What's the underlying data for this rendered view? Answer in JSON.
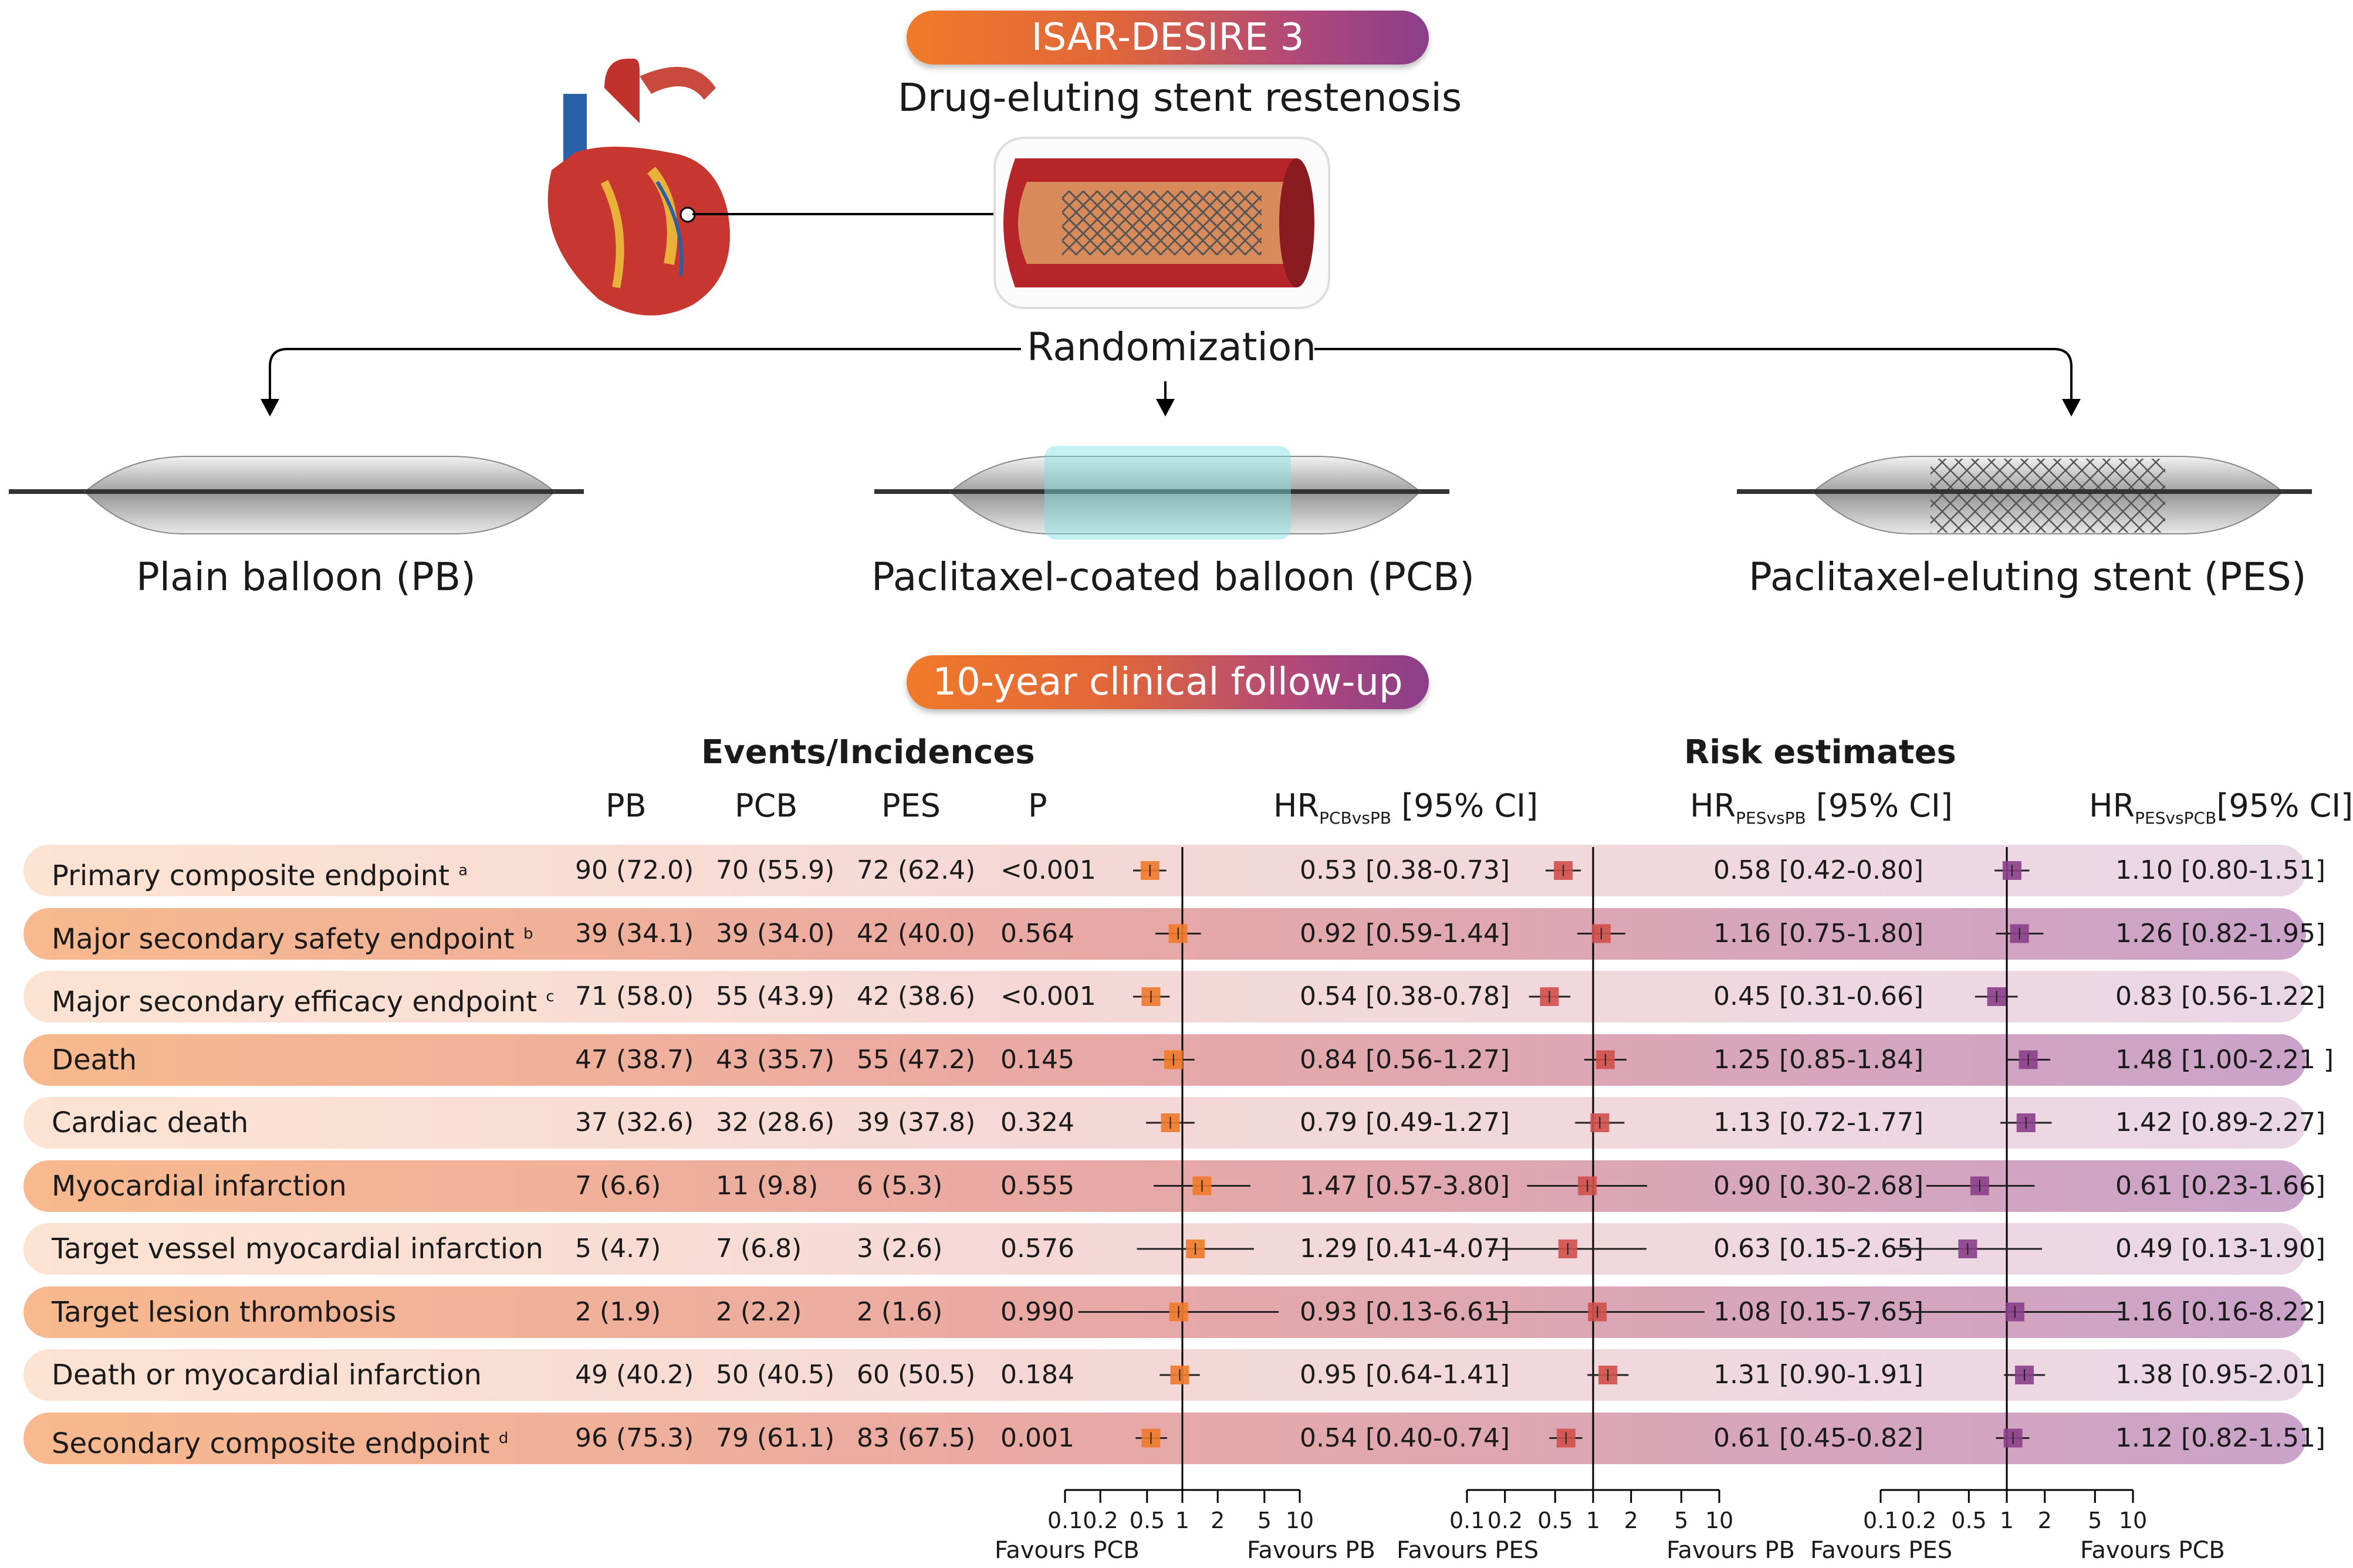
{
  "header": {
    "trial": "ISAR-DESIRE 3",
    "subtitle": "Drug-eluting stent restenosis",
    "randomization": "Randomization",
    "arms": [
      "Plain balloon (PB)",
      "Paclitaxel-coated balloon (PCB)",
      "Paclitaxel-eluting stent (PES)"
    ],
    "followup": "10-year clinical follow-up"
  },
  "table": {
    "events_header": "Events/Incidences",
    "risk_header": "Risk estimates",
    "col_pb": "PB",
    "col_pcb": "PCB",
    "col_pes": "PES",
    "col_p": "P",
    "hr1": {
      "main": "HR",
      "sub": "PCBvsPB",
      "ci": "[95% CI]"
    },
    "hr2": {
      "main": "HR",
      "sub": "PESvsPB",
      "ci": "[95% CI]"
    },
    "hr3": {
      "main": "HR",
      "sub": "PESvsPCB",
      "ci": "[95% CI]"
    },
    "axis_ticks": [
      "0.1",
      "0.2",
      "0.5",
      "1",
      "2",
      "5",
      "10"
    ],
    "favours": [
      [
        "Favours PCB",
        "Favours PB"
      ],
      [
        "Favours PES",
        "Favours PB"
      ],
      [
        "Favours PES",
        "Favours PCB"
      ]
    ]
  },
  "colors": {
    "pcb_vs_pb": "#f07a2a",
    "pes_vs_pb": "#d0504a",
    "pes_vs_pcb": "#8a3f8a"
  },
  "chart_data": {
    "type": "forest",
    "xscale": "log",
    "xlim": [
      0.1,
      10
    ],
    "rows": [
      {
        "label": "Primary composite endpoint",
        "sup": "a",
        "pb": "90 (72.0)",
        "pcb": "70 (55.9)",
        "pes": "72 (62.4)",
        "p": "<0.001",
        "hr": [
          {
            "est": 0.53,
            "lo": 0.38,
            "hi": 0.73,
            "text": "0.53 [0.38-0.73]"
          },
          {
            "est": 0.58,
            "lo": 0.42,
            "hi": 0.8,
            "text": "0.58 [0.42-0.80]"
          },
          {
            "est": 1.1,
            "lo": 0.8,
            "hi": 1.51,
            "text": "1.10 [0.80-1.51]"
          }
        ]
      },
      {
        "label": "Major secondary safety endpoint",
        "sup": "b",
        "pb": "39 (34.1)",
        "pcb": "39 (34.0)",
        "pes": "42 (40.0)",
        "p": "0.564",
        "hr": [
          {
            "est": 0.92,
            "lo": 0.59,
            "hi": 1.44,
            "text": "0.92 [0.59-1.44]"
          },
          {
            "est": 1.16,
            "lo": 0.75,
            "hi": 1.8,
            "text": "1.16 [0.75-1.80]"
          },
          {
            "est": 1.26,
            "lo": 0.82,
            "hi": 1.95,
            "text": "1.26 [0.82-1.95]"
          }
        ]
      },
      {
        "label": "Major secondary efficacy endpoint",
        "sup": "c",
        "pb": "71 (58.0)",
        "pcb": "55 (43.9)",
        "pes": "42 (38.6)",
        "p": "<0.001",
        "hr": [
          {
            "est": 0.54,
            "lo": 0.38,
            "hi": 0.78,
            "text": "0.54 [0.38-0.78]"
          },
          {
            "est": 0.45,
            "lo": 0.31,
            "hi": 0.66,
            "text": "0.45 [0.31-0.66]"
          },
          {
            "est": 0.83,
            "lo": 0.56,
            "hi": 1.22,
            "text": "0.83 [0.56-1.22]"
          }
        ]
      },
      {
        "label": "Death",
        "sup": "",
        "pb": "47 (38.7)",
        "pcb": "43 (35.7)",
        "pes": "55 (47.2)",
        "p": "0.145",
        "hr": [
          {
            "est": 0.84,
            "lo": 0.56,
            "hi": 1.27,
            "text": "0.84 [0.56-1.27]"
          },
          {
            "est": 1.25,
            "lo": 0.85,
            "hi": 1.84,
            "text": "1.25 [0.85-1.84]"
          },
          {
            "est": 1.48,
            "lo": 1.0,
            "hi": 2.21,
            "text": "1.48 [1.00-2.21 ]"
          }
        ]
      },
      {
        "label": "Cardiac death",
        "sup": "",
        "pb": "37 (32.6)",
        "pcb": "32 (28.6)",
        "pes": "39 (37.8)",
        "p": "0.324",
        "hr": [
          {
            "est": 0.79,
            "lo": 0.49,
            "hi": 1.27,
            "text": "0.79 [0.49-1.27]"
          },
          {
            "est": 1.13,
            "lo": 0.72,
            "hi": 1.77,
            "text": "1.13 [0.72-1.77]"
          },
          {
            "est": 1.42,
            "lo": 0.89,
            "hi": 2.27,
            "text": "1.42 [0.89-2.27]"
          }
        ]
      },
      {
        "label": "Myocardial infarction",
        "sup": "",
        "pb": "7 (6.6)",
        "pcb": "11 (9.8)",
        "pes": "6 (5.3)",
        "p": "0.555",
        "hr": [
          {
            "est": 1.47,
            "lo": 0.57,
            "hi": 3.8,
            "text": "1.47 [0.57-3.80]"
          },
          {
            "est": 0.9,
            "lo": 0.3,
            "hi": 2.68,
            "text": "0.90 [0.30-2.68]"
          },
          {
            "est": 0.61,
            "lo": 0.23,
            "hi": 1.66,
            "text": "0.61 [0.23-1.66]"
          }
        ]
      },
      {
        "label": "Target vessel myocardial infarction",
        "sup": "",
        "pb": "5 (4.7)",
        "pcb": "7 (6.8)",
        "pes": "3 (2.6)",
        "p": "0.576",
        "hr": [
          {
            "est": 1.29,
            "lo": 0.41,
            "hi": 4.07,
            "text": "1.29 [0.41-4.07]"
          },
          {
            "est": 0.63,
            "lo": 0.15,
            "hi": 2.65,
            "text": "0.63 [0.15-2.65]"
          },
          {
            "est": 0.49,
            "lo": 0.13,
            "hi": 1.9,
            "text": "0.49 [0.13-1.90]"
          }
        ]
      },
      {
        "label": "Target lesion thrombosis",
        "sup": "",
        "pb": "2 (1.9)",
        "pcb": "2 (2.2)",
        "pes": "2 (1.6)",
        "p": "0.990",
        "hr": [
          {
            "est": 0.93,
            "lo": 0.13,
            "hi": 6.61,
            "text": "0.93 [0.13-6.61]"
          },
          {
            "est": 1.08,
            "lo": 0.15,
            "hi": 7.65,
            "text": "1.08 [0.15-7.65]"
          },
          {
            "est": 1.16,
            "lo": 0.16,
            "hi": 8.22,
            "text": "1.16 [0.16-8.22]"
          }
        ]
      },
      {
        "label": "Death or myocardial infarction",
        "sup": "",
        "pb": "49 (40.2)",
        "pcb": "50 (40.5)",
        "pes": "60 (50.5)",
        "p": "0.184",
        "hr": [
          {
            "est": 0.95,
            "lo": 0.64,
            "hi": 1.41,
            "text": "0.95 [0.64-1.41]"
          },
          {
            "est": 1.31,
            "lo": 0.9,
            "hi": 1.91,
            "text": "1.31 [0.90-1.91]"
          },
          {
            "est": 1.38,
            "lo": 0.95,
            "hi": 2.01,
            "text": "1.38 [0.95-2.01]"
          }
        ]
      },
      {
        "label": "Secondary composite endpoint",
        "sup": "d",
        "pb": "96 (75.3)",
        "pcb": "79 (61.1)",
        "pes": "83 (67.5)",
        "p": "0.001",
        "hr": [
          {
            "est": 0.54,
            "lo": 0.4,
            "hi": 0.74,
            "text": "0.54 [0.40-0.74]"
          },
          {
            "est": 0.61,
            "lo": 0.45,
            "hi": 0.82,
            "text": "0.61 [0.45-0.82]"
          },
          {
            "est": 1.12,
            "lo": 0.82,
            "hi": 1.51,
            "text": "1.12 [0.82-1.51]"
          }
        ]
      }
    ]
  }
}
